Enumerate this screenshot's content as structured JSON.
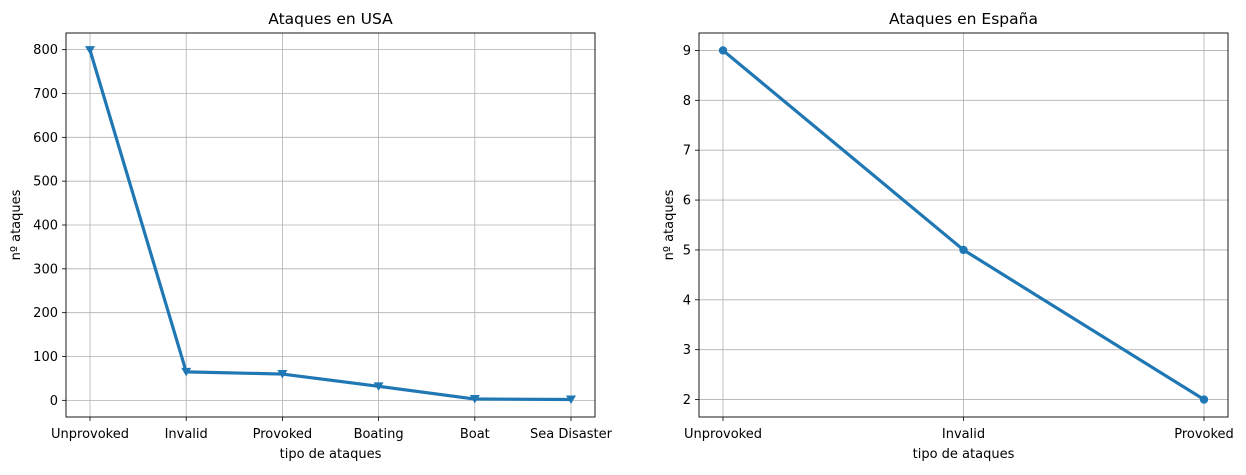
{
  "chart_data": [
    {
      "type": "line",
      "title": "Ataques en USA",
      "xlabel": "tipo de ataques",
      "ylabel": "nº ataques",
      "categories": [
        "Unprovoked",
        "Invalid",
        "Provoked",
        "Boating",
        "Boat",
        "Sea Disaster"
      ],
      "series": [
        {
          "values": [
            799,
            65,
            60,
            32,
            3,
            2
          ],
          "color": "#1f77b4",
          "marker": "triangle-down"
        }
      ],
      "yticks": [
        0,
        100,
        200,
        300,
        400,
        500,
        600,
        700,
        800
      ],
      "ylim": [
        -38,
        838
      ],
      "grid": true
    },
    {
      "type": "line",
      "title": "Ataques en España",
      "xlabel": "tipo de ataques",
      "ylabel": "nº ataques",
      "categories": [
        "Unprovoked",
        "Invalid",
        "Provoked"
      ],
      "series": [
        {
          "values": [
            9,
            5,
            2
          ],
          "color": "#1f77b4",
          "marker": "circle"
        }
      ],
      "yticks": [
        2,
        3,
        4,
        5,
        6,
        7,
        8,
        9
      ],
      "ylim": [
        1.65,
        9.35
      ],
      "grid": true
    }
  ]
}
